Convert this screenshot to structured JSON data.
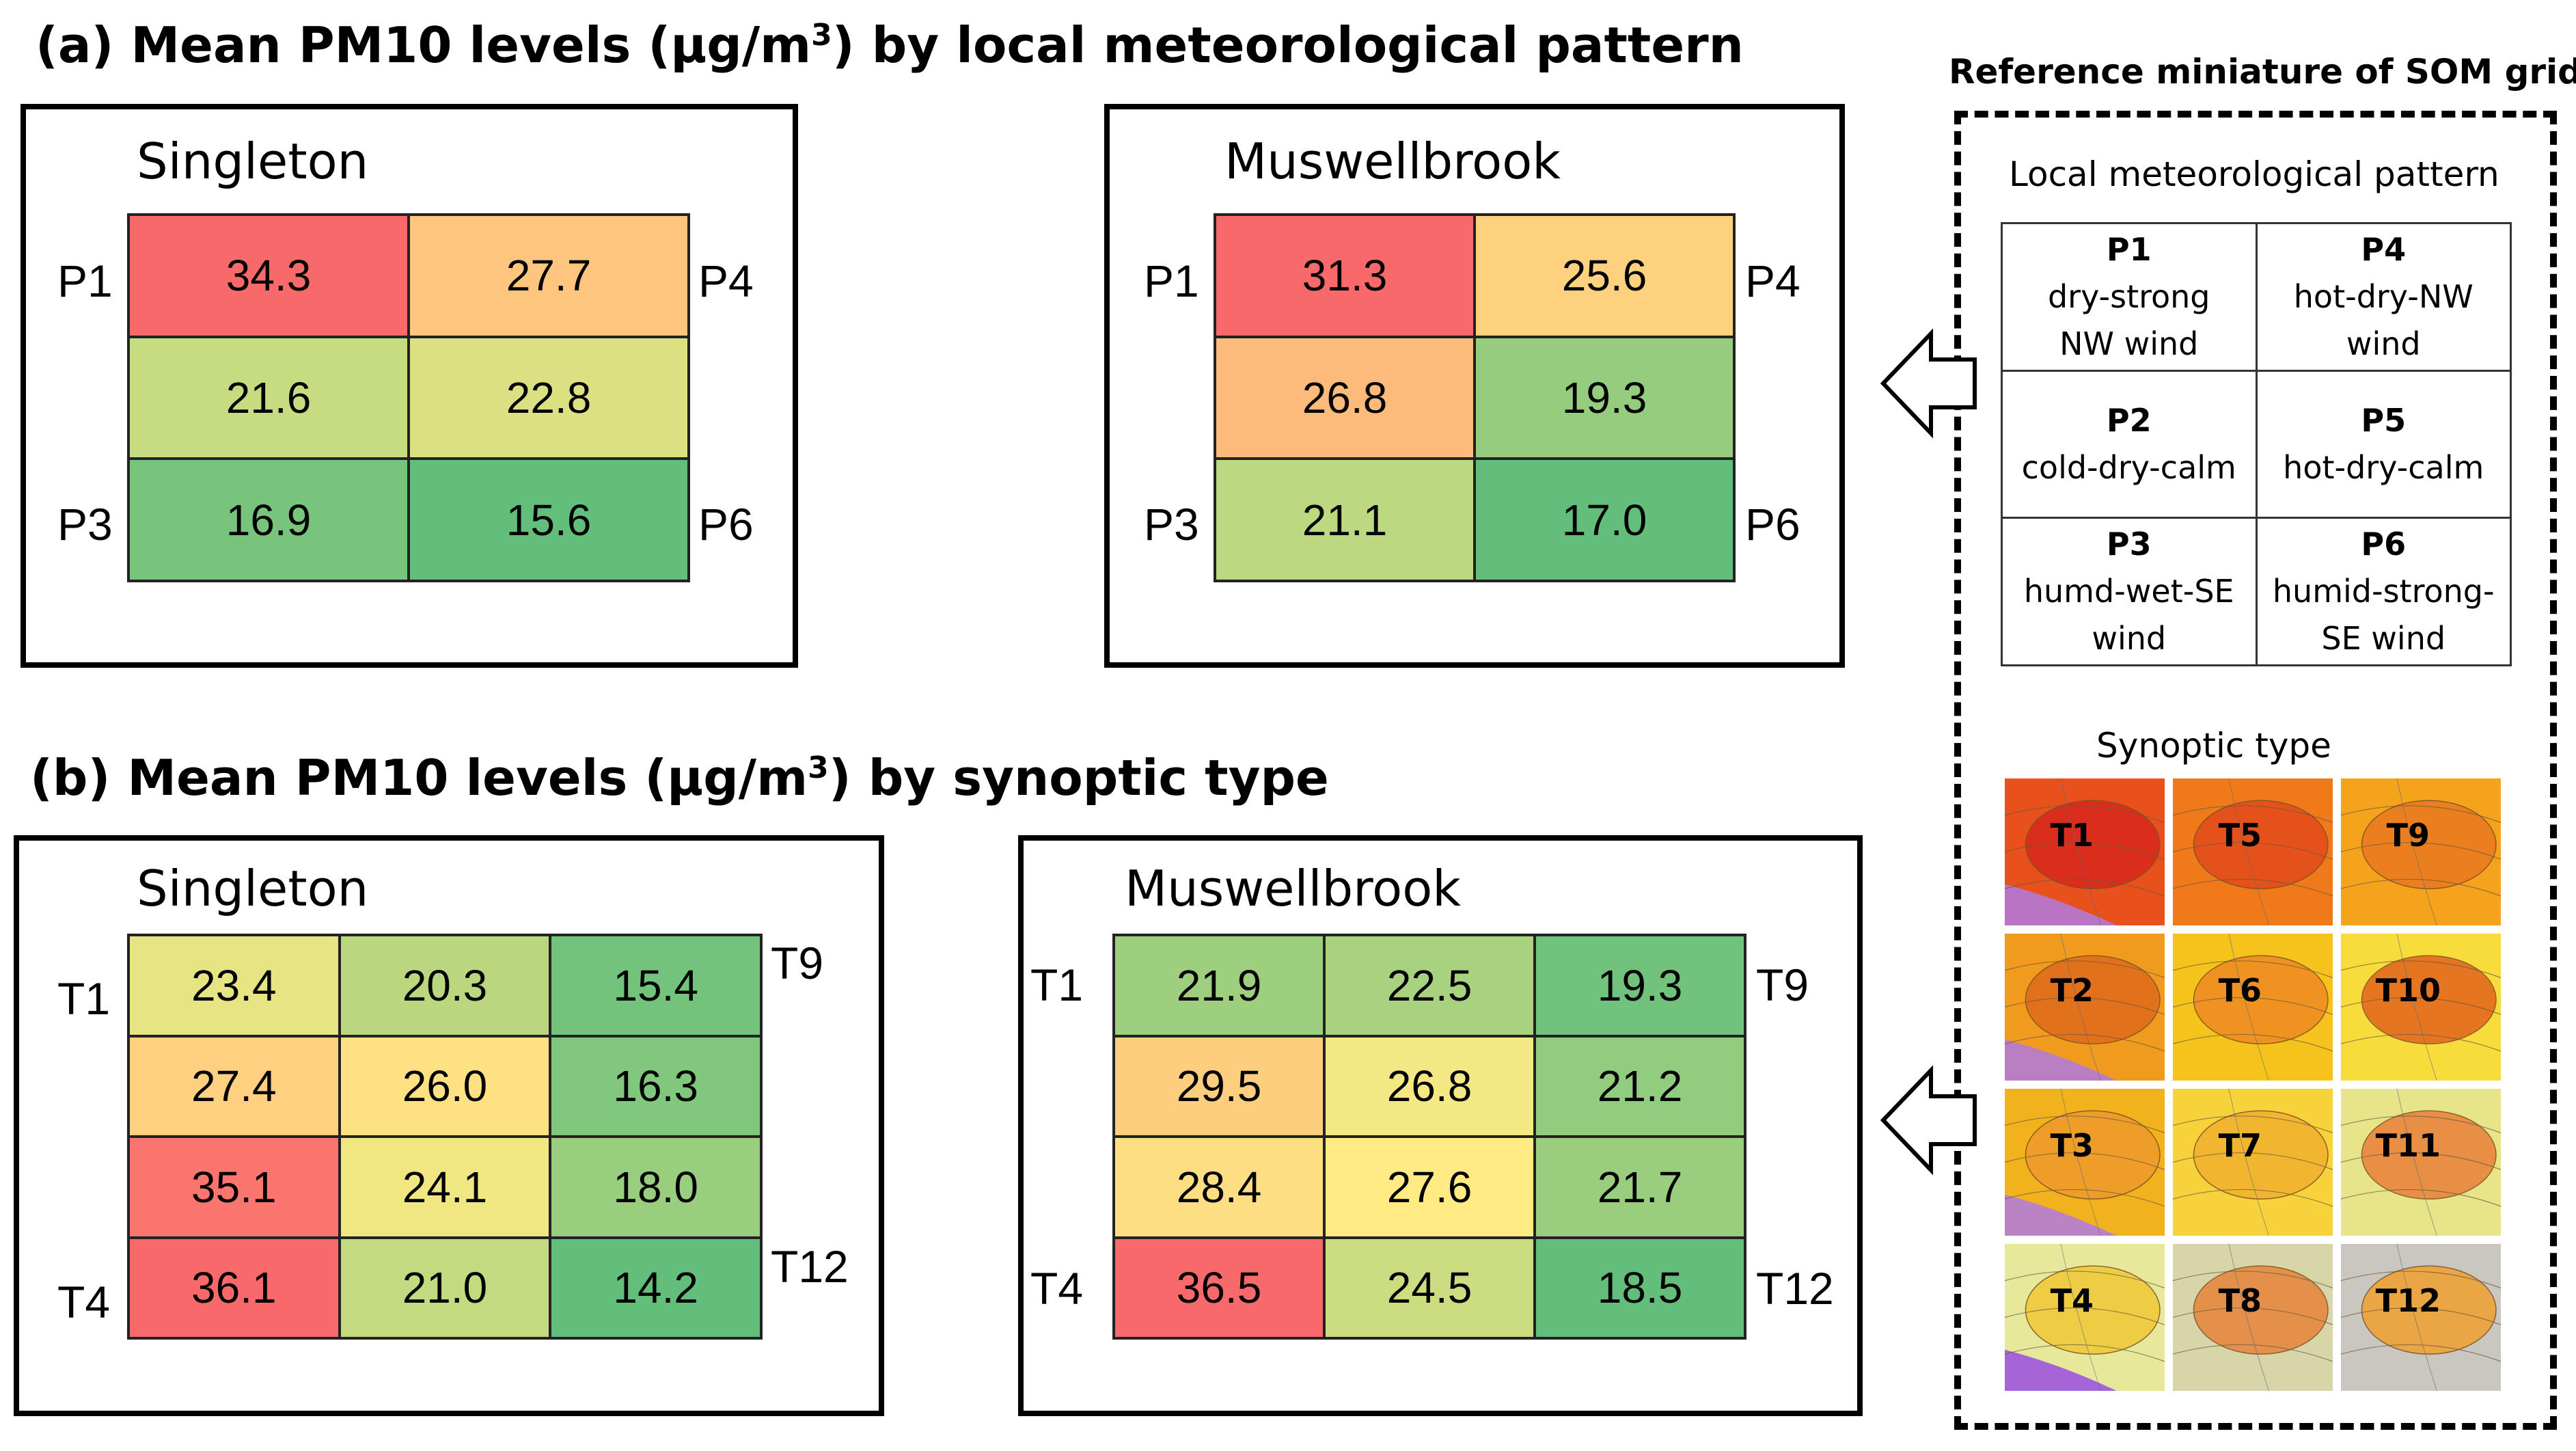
{
  "colors": {
    "high": "#f8696b",
    "mid": "#ffeb84",
    "low": "#63be7b"
  },
  "panel_a": {
    "title_main": "(a) Mean PM10 levels (μg/m",
    "title_sup": "3",
    "title_end": ") by local meteorological pattern"
  },
  "panel_b": {
    "title_main": "(b) Mean PM10 levels (μg/m",
    "title_sup": "3",
    "title_end": ") by synoptic type"
  },
  "reference": {
    "title": "Reference miniature of SOM grid",
    "local_title": "Local meteorological pattern",
    "synoptic_title": "Synoptic type",
    "patterns": [
      {
        "code": "P1",
        "line1": "dry-strong",
        "line2": "NW wind"
      },
      {
        "code": "P4",
        "line1": "hot-dry-NW",
        "line2": "wind"
      },
      {
        "code": "P2",
        "line1": "cold-dry-calm",
        "line2": ""
      },
      {
        "code": "P5",
        "line1": "hot-dry-calm",
        "line2": ""
      },
      {
        "code": "P3",
        "line1": "humd-wet-SE",
        "line2": "wind"
      },
      {
        "code": "P6",
        "line1": "humid-strong-",
        "line2": "SE wind"
      }
    ],
    "synoptic_types": [
      "T1",
      "T5",
      "T9",
      "T2",
      "T6",
      "T10",
      "T3",
      "T7",
      "T11",
      "T4",
      "T8",
      "T12"
    ]
  },
  "chart_data": [
    {
      "type": "heatmap",
      "title": "(a) Mean PM10 levels (μg/m3) by local meteorological pattern",
      "site": "Singleton",
      "rows": 3,
      "cols": 2,
      "values": [
        [
          34.3,
          27.7
        ],
        [
          21.6,
          22.8
        ],
        [
          16.9,
          15.6
        ]
      ],
      "display": [
        [
          "34.3",
          "27.7"
        ],
        [
          "21.6",
          "22.8"
        ],
        [
          "16.9",
          "15.6"
        ]
      ],
      "corner_labels": {
        "top_left": "P1",
        "top_right": "P4",
        "bottom_left": "P3",
        "bottom_right": "P6"
      }
    },
    {
      "type": "heatmap",
      "title": "(a) Mean PM10 levels (μg/m3) by local meteorological pattern",
      "site": "Muswellbrook",
      "rows": 3,
      "cols": 2,
      "values": [
        [
          31.3,
          25.6
        ],
        [
          26.8,
          19.3
        ],
        [
          21.1,
          17.0
        ]
      ],
      "display": [
        [
          "31.3",
          "25.6"
        ],
        [
          "26.8",
          "19.3"
        ],
        [
          "21.1",
          "17.0"
        ]
      ],
      "corner_labels": {
        "top_left": "P1",
        "top_right": "P4",
        "bottom_left": "P3",
        "bottom_right": "P6"
      }
    },
    {
      "type": "heatmap",
      "title": "(b) Mean PM10 levels (μg/m3) by synoptic type",
      "site": "Singleton",
      "rows": 4,
      "cols": 3,
      "values": [
        [
          23.4,
          20.3,
          15.4
        ],
        [
          27.4,
          26.0,
          16.3
        ],
        [
          35.1,
          24.1,
          18.0
        ],
        [
          36.1,
          21.0,
          14.2
        ]
      ],
      "display": [
        [
          "23.4",
          "20.3",
          "15.4"
        ],
        [
          "27.4",
          "26.0",
          "16.3"
        ],
        [
          "35.1",
          "24.1",
          "18.0"
        ],
        [
          "36.1",
          "21.0",
          "14.2"
        ]
      ],
      "corner_labels": {
        "top_left": "T1",
        "top_right": "T9",
        "bottom_left": "T4",
        "bottom_right": "T12"
      }
    },
    {
      "type": "heatmap",
      "title": "(b) Mean PM10 levels (μg/m3) by synoptic type",
      "site": "Muswellbrook",
      "rows": 4,
      "cols": 3,
      "values": [
        [
          21.9,
          22.5,
          19.3
        ],
        [
          29.5,
          26.8,
          21.2
        ],
        [
          28.4,
          27.6,
          21.7
        ],
        [
          36.5,
          24.5,
          18.5
        ]
      ],
      "display": [
        [
          "21.9",
          "22.5",
          "19.3"
        ],
        [
          "29.5",
          "26.8",
          "21.2"
        ],
        [
          "28.4",
          "27.6",
          "21.7"
        ],
        [
          "36.5",
          "24.5",
          "18.5"
        ]
      ],
      "corner_labels": {
        "top_left": "T1",
        "top_right": "T9",
        "bottom_left": "T4",
        "bottom_right": "T12"
      }
    }
  ]
}
